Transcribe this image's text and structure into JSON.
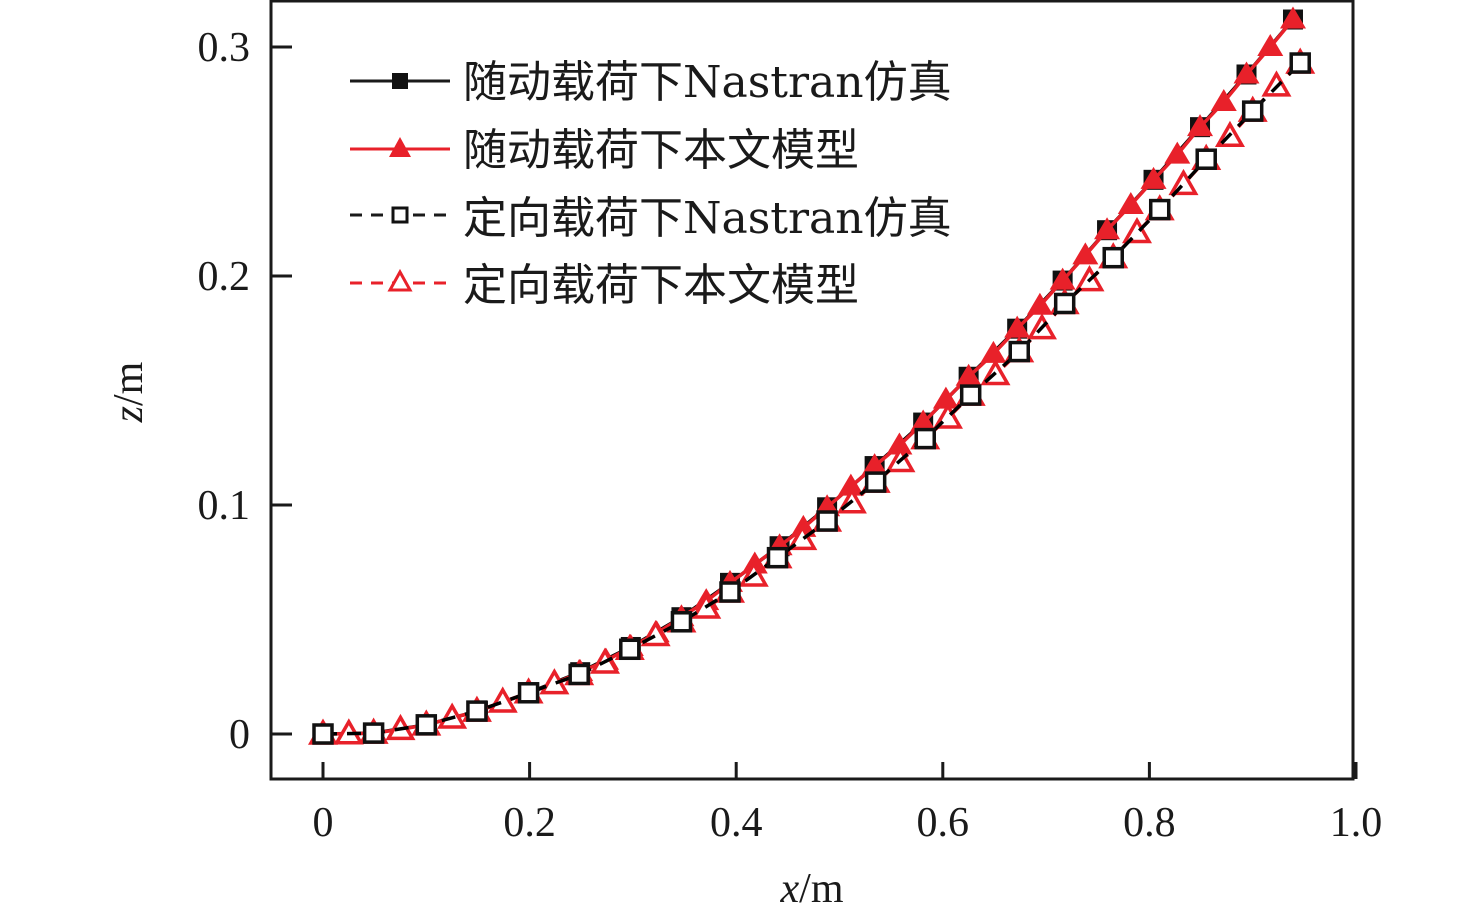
{
  "chart_data": {
    "type": "line",
    "title": "",
    "xlabel_var": "x",
    "xlabel_unit": "/m",
    "ylabel_var": "z",
    "ylabel_unit": "/m",
    "xlim": [
      -0.05,
      1.0
    ],
    "ylim": [
      -0.02,
      0.32
    ],
    "xticks": [
      0,
      0.2,
      0.4,
      0.6,
      0.8,
      1.0
    ],
    "xtick_labels": [
      "0",
      "0.2",
      "0.4",
      "0.6",
      "0.8",
      "1.0"
    ],
    "yticks": [
      0,
      0.1,
      0.2,
      0.3
    ],
    "ytick_labels": [
      "0",
      "0.1",
      "0.2",
      "0.3"
    ],
    "grid": false,
    "legend_position": "top-left",
    "series": [
      {
        "name": "随动载荷下Nastran仿真",
        "color": "#000000",
        "line": "solid",
        "marker": "square-filled",
        "x": [
          0.0,
          0.049,
          0.1,
          0.15,
          0.199,
          0.249,
          0.298,
          0.347,
          0.394,
          0.442,
          0.488,
          0.534,
          0.581,
          0.625,
          0.672,
          0.716,
          0.759,
          0.804,
          0.849,
          0.894,
          0.939
        ],
        "y": [
          0.0,
          0.0004,
          0.004,
          0.01,
          0.018,
          0.027,
          0.038,
          0.051,
          0.066,
          0.082,
          0.099,
          0.117,
          0.136,
          0.156,
          0.177,
          0.198,
          0.22,
          0.242,
          0.265,
          0.288,
          0.312
        ]
      },
      {
        "name": "随动载荷下本文模型",
        "color": "#e8212a",
        "line": "solid",
        "marker": "triangle-filled",
        "x": [
          0.0,
          0.025,
          0.049,
          0.075,
          0.1,
          0.125,
          0.15,
          0.175,
          0.199,
          0.224,
          0.249,
          0.274,
          0.298,
          0.323,
          0.347,
          0.371,
          0.394,
          0.418,
          0.442,
          0.465,
          0.488,
          0.511,
          0.534,
          0.558,
          0.581,
          0.603,
          0.625,
          0.649,
          0.672,
          0.694,
          0.716,
          0.738,
          0.759,
          0.782,
          0.804,
          0.827,
          0.849,
          0.872,
          0.894,
          0.917,
          0.939
        ],
        "y": [
          0.0,
          0.0001,
          0.0004,
          0.002,
          0.004,
          0.007,
          0.01,
          0.014,
          0.018,
          0.022,
          0.027,
          0.032,
          0.038,
          0.044,
          0.051,
          0.058,
          0.066,
          0.074,
          0.082,
          0.09,
          0.099,
          0.108,
          0.117,
          0.126,
          0.136,
          0.146,
          0.156,
          0.166,
          0.177,
          0.187,
          0.198,
          0.209,
          0.22,
          0.231,
          0.242,
          0.253,
          0.265,
          0.276,
          0.288,
          0.3,
          0.312
        ]
      },
      {
        "name": "定向载荷下Nastran仿真",
        "color": "#000000",
        "line": "dashed",
        "marker": "square-open",
        "x": [
          0.0,
          0.049,
          0.1,
          0.149,
          0.199,
          0.248,
          0.297,
          0.347,
          0.394,
          0.44,
          0.488,
          0.535,
          0.583,
          0.627,
          0.674,
          0.718,
          0.765,
          0.81,
          0.855,
          0.9,
          0.946
        ],
        "y": [
          0.0,
          0.0004,
          0.004,
          0.01,
          0.018,
          0.026,
          0.037,
          0.049,
          0.062,
          0.077,
          0.093,
          0.11,
          0.129,
          0.148,
          0.167,
          0.188,
          0.208,
          0.229,
          0.251,
          0.272,
          0.293
        ]
      },
      {
        "name": "定向载荷下本文模型",
        "color": "#e8212a",
        "line": "dashed",
        "marker": "triangle-open",
        "x": [
          0.0,
          0.025,
          0.049,
          0.075,
          0.1,
          0.125,
          0.149,
          0.174,
          0.199,
          0.224,
          0.248,
          0.273,
          0.297,
          0.322,
          0.347,
          0.371,
          0.394,
          0.417,
          0.44,
          0.464,
          0.488,
          0.512,
          0.535,
          0.559,
          0.583,
          0.605,
          0.627,
          0.651,
          0.674,
          0.696,
          0.718,
          0.742,
          0.765,
          0.788,
          0.81,
          0.833,
          0.855,
          0.878,
          0.9,
          0.923,
          0.946
        ],
        "y": [
          0.0,
          0.0001,
          0.0004,
          0.002,
          0.004,
          0.007,
          0.01,
          0.014,
          0.018,
          0.022,
          0.026,
          0.031,
          0.037,
          0.043,
          0.049,
          0.055,
          0.062,
          0.069,
          0.077,
          0.085,
          0.093,
          0.101,
          0.11,
          0.119,
          0.129,
          0.138,
          0.148,
          0.157,
          0.167,
          0.177,
          0.188,
          0.198,
          0.208,
          0.219,
          0.229,
          0.24,
          0.251,
          0.261,
          0.272,
          0.283,
          0.293
        ]
      }
    ]
  }
}
